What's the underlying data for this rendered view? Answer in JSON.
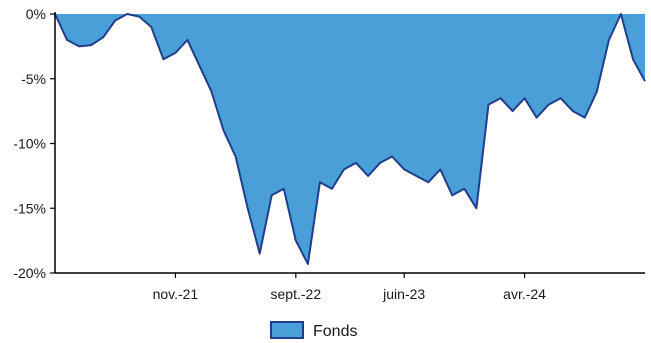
{
  "chart_data": {
    "type": "area",
    "title": "",
    "xlabel": "",
    "ylabel": "",
    "y_unit": "%",
    "ylim": [
      -20,
      0
    ],
    "y_ticks": [
      0,
      -5,
      -10,
      -15,
      -20
    ],
    "y_tick_labels": [
      "0%",
      "-5%",
      "-10%",
      "-15%",
      "-20%"
    ],
    "x_ticks": [
      "2021-11",
      "2022-09",
      "2023-06",
      "2024-04"
    ],
    "x_tick_labels": [
      "nov.-21",
      "sept.-22",
      "juin-23",
      "avr.-24"
    ],
    "xlim": [
      "2021-01",
      "2025-02"
    ],
    "grid": false,
    "legend_position": "bottom-center",
    "colors": {
      "fill": "#4a9fd8",
      "line": "#1f3e8c"
    },
    "series": [
      {
        "name": "Fonds",
        "x": [
          "2021-01",
          "2021-02",
          "2021-03",
          "2021-04",
          "2021-05",
          "2021-06",
          "2021-07",
          "2021-08",
          "2021-09",
          "2021-10",
          "2021-11",
          "2021-12",
          "2022-01",
          "2022-02",
          "2022-03",
          "2022-04",
          "2022-05",
          "2022-06",
          "2022-07",
          "2022-08",
          "2022-09",
          "2022-10",
          "2022-11",
          "2022-12",
          "2023-01",
          "2023-02",
          "2023-03",
          "2023-04",
          "2023-05",
          "2023-06",
          "2023-07",
          "2023-08",
          "2023-09",
          "2023-10",
          "2023-11",
          "2023-12",
          "2024-01",
          "2024-02",
          "2024-03",
          "2024-04",
          "2024-05",
          "2024-06",
          "2024-07",
          "2024-08",
          "2024-09",
          "2024-10",
          "2024-11",
          "2024-12",
          "2025-01",
          "2025-02"
        ],
        "values": [
          0.0,
          -2.0,
          -2.5,
          -2.4,
          -1.8,
          -0.5,
          0.0,
          -0.2,
          -1.0,
          -3.5,
          -3.0,
          -2.0,
          -4.0,
          -6.0,
          -9.0,
          -11.0,
          -15.0,
          -18.5,
          -14.0,
          -13.5,
          -17.5,
          -19.3,
          -13.0,
          -13.5,
          -12.0,
          -11.5,
          -12.5,
          -11.5,
          -11.0,
          -12.0,
          -12.5,
          -13.0,
          -12.0,
          -14.0,
          -13.5,
          -15.0,
          -7.0,
          -6.5,
          -7.5,
          -6.5,
          -8.0,
          -7.0,
          -6.5,
          -7.5,
          -8.0,
          -6.0,
          -2.0,
          0.0,
          -3.5,
          -5.2
        ]
      }
    ]
  }
}
